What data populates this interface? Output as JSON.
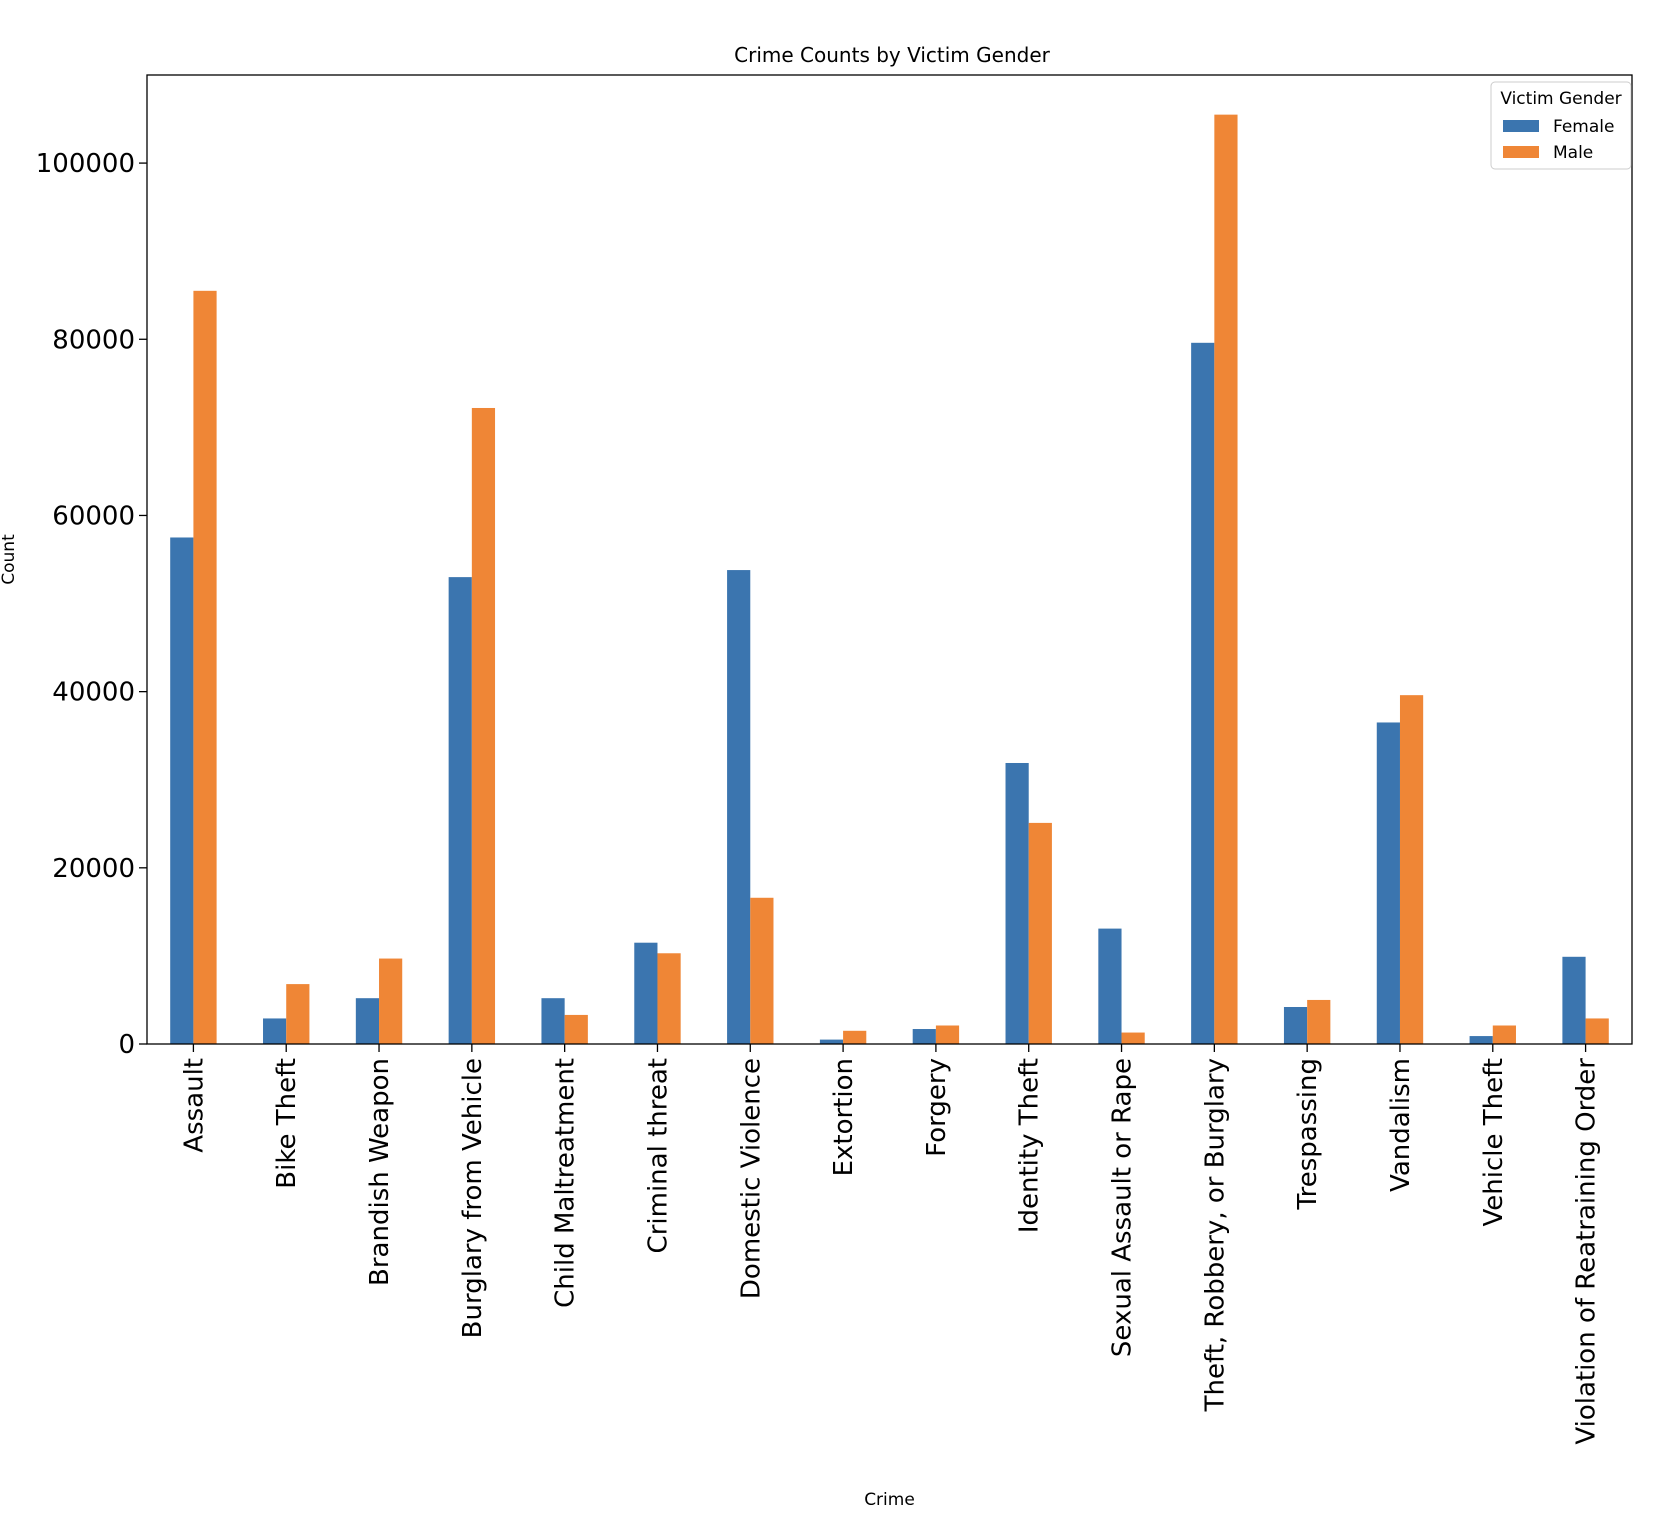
{
  "chart_data": {
    "type": "bar",
    "title": "Crime Counts by Victim Gender",
    "xlabel": "Crime",
    "ylabel": "Count",
    "ylim": [
      0,
      110000
    ],
    "yticks": [
      0,
      20000,
      40000,
      60000,
      80000,
      100000
    ],
    "grid": false,
    "legend": {
      "title": "Victim Gender",
      "placement": "top-right"
    },
    "categories": [
      "Assault",
      "Bike Theft",
      "Brandish Weapon",
      "Burglary from Vehicle",
      "Child Maltreatment",
      "Criminal threat",
      "Domestic Violence",
      "Extortion",
      "Forgery",
      "Identity Theft",
      "Sexual Assault or Rape",
      "Theft, Robbery, or Burglary",
      "Trespassing",
      "Vandalism",
      "Vehicle Theft",
      "Violation of Reatraining Order"
    ],
    "series": [
      {
        "name": "Female",
        "color": "#3b75af",
        "values": [
          57500,
          2900,
          5200,
          53000,
          5200,
          11500,
          53800,
          500,
          1700,
          31900,
          13100,
          79600,
          4200,
          36500,
          900,
          9900
        ]
      },
      {
        "name": "Male",
        "color": "#ef8636",
        "values": [
          85500,
          6800,
          9700,
          72200,
          3300,
          10300,
          16600,
          1500,
          2100,
          25100,
          1300,
          105500,
          5000,
          39600,
          2100,
          2900
        ]
      }
    ]
  }
}
